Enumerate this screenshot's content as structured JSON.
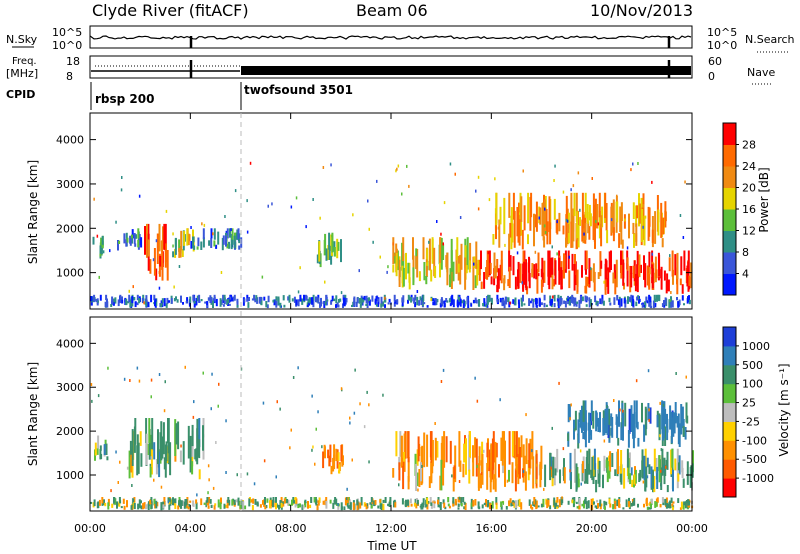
{
  "header": {
    "site": "Clyde River (fitACF)",
    "beam": "Beam 06",
    "date": "10/Nov/2013"
  },
  "summary_panels": {
    "left_labels": {
      "nsky": "N.Sky",
      "freq": "Freq.",
      "freq_unit": "[MHz]",
      "cpid": "CPID"
    },
    "right_labels": {
      "nsearch": "N.Search",
      "nave": "Nave"
    },
    "nsky_ticks": [
      "10^5",
      "10^0"
    ],
    "nsearch_ticks": [
      "10^5",
      "10^0"
    ],
    "freq_ticks": [
      "18",
      "8"
    ],
    "nave_ticks": [
      "60",
      "0"
    ],
    "cpid_segments": [
      {
        "label": "rbsp 200",
        "start_hour": 0
      },
      {
        "label": "twofsound 3501",
        "start_hour": 6
      }
    ]
  },
  "chart_data": [
    {
      "type": "heatmap",
      "name": "power",
      "xlabel": "",
      "ylabel": "Slant Range [km]",
      "xlim": [
        0,
        24
      ],
      "ylim": [
        180,
        4600
      ],
      "yticks": [
        "1000",
        "2000",
        "3000",
        "4000"
      ],
      "colorbar": {
        "label": "Power [dB]",
        "ticks": [
          "4",
          "8",
          "12",
          "16",
          "20",
          "24",
          "28"
        ],
        "colors": [
          "#0018ff",
          "#3a56d9",
          "#2f8f86",
          "#5cbf3a",
          "#e6d400",
          "#f08a12",
          "#ff6a00",
          "#ff0000"
        ]
      },
      "regions": [
        {
          "t0": 0.1,
          "t1": 0.5,
          "r0": 1300,
          "r1": 1900,
          "level": 12
        },
        {
          "t0": 1.0,
          "t1": 2.0,
          "r0": 1500,
          "r1": 2000,
          "level": 8
        },
        {
          "t0": 2.1,
          "t1": 3.1,
          "r0": 800,
          "r1": 2100,
          "level": 26
        },
        {
          "t0": 3.2,
          "t1": 4.1,
          "r0": 1300,
          "r1": 2000,
          "level": 16
        },
        {
          "t0": 4.0,
          "t1": 6.0,
          "r0": 1500,
          "r1": 2000,
          "level": 8
        },
        {
          "t0": 9.0,
          "t1": 10.0,
          "r0": 1100,
          "r1": 1900,
          "level": 14
        },
        {
          "t0": 12.0,
          "t1": 15.5,
          "r0": 600,
          "r1": 1800,
          "level": 18
        },
        {
          "t0": 15.5,
          "t1": 24.0,
          "r0": 500,
          "r1": 1500,
          "level": 28
        },
        {
          "t0": 16.0,
          "t1": 23.0,
          "r0": 1500,
          "r1": 2800,
          "level": 22
        },
        {
          "t0": 0.0,
          "t1": 24.0,
          "r0": 200,
          "r1": 500,
          "level": 6
        }
      ]
    },
    {
      "type": "heatmap",
      "name": "velocity",
      "xlabel": "Time UT",
      "ylabel": "Slant Range [km]",
      "xlim": [
        0,
        24
      ],
      "ylim": [
        180,
        4600
      ],
      "xticks": [
        "00:00",
        "04:00",
        "08:00",
        "12:00",
        "16:00",
        "20:00",
        "00:00"
      ],
      "yticks": [
        "1000",
        "2000",
        "3000",
        "4000"
      ],
      "colorbar": {
        "label": "Velocity [m s⁻¹]",
        "ticks": [
          "1000",
          "500",
          "100",
          "25",
          "-25",
          "-100",
          "-500",
          "-1000"
        ],
        "colors": [
          "#1e3fd8",
          "#2f7fb8",
          "#3a8f6a",
          "#5cbf3a",
          "#bdbdbd",
          "#ffd000",
          "#ff9000",
          "#ff5a00",
          "#ff0000"
        ]
      },
      "regions": [
        {
          "t0": 0.1,
          "t1": 0.7,
          "r0": 1300,
          "r1": 1900,
          "level": 300
        },
        {
          "t0": 1.5,
          "t1": 4.5,
          "r0": 900,
          "r1": 2300,
          "level": 200
        },
        {
          "t0": 9.2,
          "t1": 10.1,
          "r0": 1000,
          "r1": 1700,
          "level": -300
        },
        {
          "t0": 12.0,
          "t1": 18.0,
          "r0": 600,
          "r1": 2000,
          "level": -300
        },
        {
          "t0": 18.0,
          "t1": 24.0,
          "r0": 600,
          "r1": 1600,
          "level": 200
        },
        {
          "t0": 19.0,
          "t1": 24.0,
          "r0": 1600,
          "r1": 2700,
          "level": 700
        },
        {
          "t0": 0.0,
          "t1": 24.0,
          "r0": 200,
          "r1": 500,
          "level": 50
        }
      ]
    }
  ]
}
